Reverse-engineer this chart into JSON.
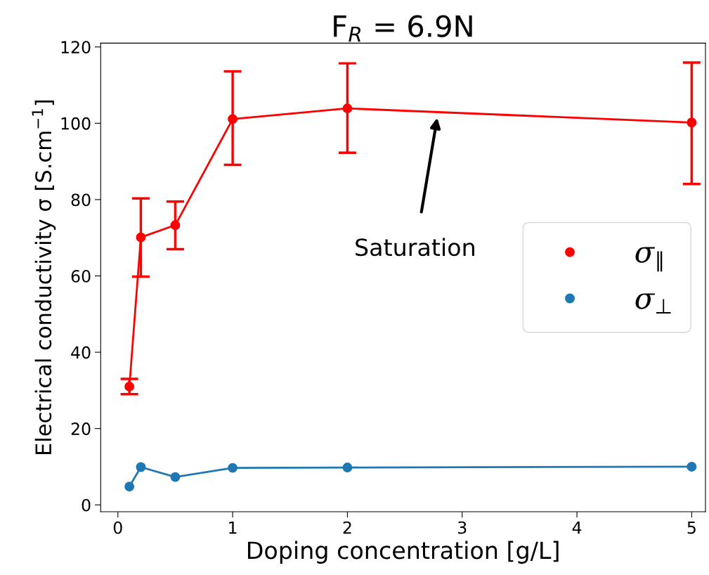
{
  "chart_data": {
    "type": "line",
    "title": "F$_{R}$ = 6.9N",
    "xlabel": "Doping concentration [g/L]",
    "ylabel": "Electrical conductivity σ [S.cm$^{−1}$]",
    "x": [
      0.1,
      0.2,
      0.5,
      1,
      2,
      5
    ],
    "series": [
      {
        "name": "σ$_{∥}$",
        "color": "#ff0000",
        "values": [
          31,
          70.1,
          73.3,
          101.1,
          103.9,
          100.2
        ],
        "errors": [
          [
            29,
            33
          ],
          [
            59.8,
            80.3
          ],
          [
            67,
            79.5
          ],
          [
            89.1,
            113.6
          ],
          [
            92.3,
            115.7
          ],
          [
            84.1,
            115.9
          ]
        ]
      },
      {
        "name": "σ$_{⊥}$",
        "color": "#1f77b4",
        "values": [
          4.8,
          9.9,
          7.3,
          9.7,
          9.8,
          10
        ]
      }
    ],
    "marker": "circle",
    "line_style": "solid",
    "xlim": [
      -0.15,
      5.12
    ],
    "xticks": [
      0,
      1,
      2,
      3,
      4,
      5
    ],
    "ylim": [
      -1.8,
      121
    ],
    "yticks": [
      0,
      20,
      40,
      60,
      80,
      100,
      120
    ],
    "grid": false,
    "legend": "center right",
    "annotations": [
      "Saturation"
    ]
  }
}
